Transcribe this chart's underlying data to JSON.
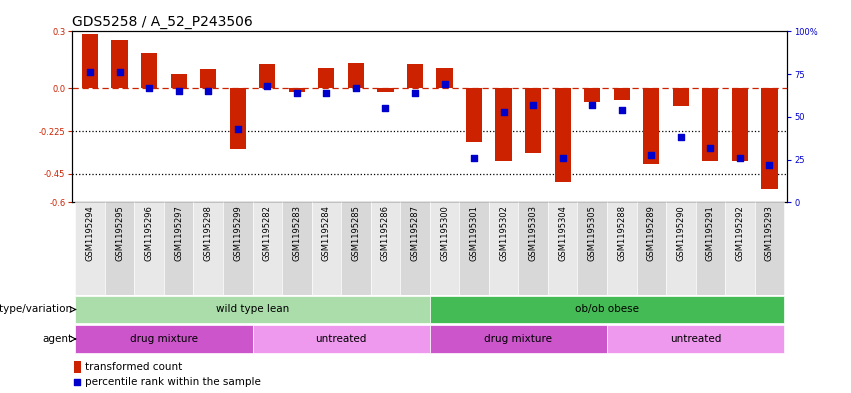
{
  "title": "GDS5258 / A_52_P243506",
  "samples": [
    "GSM1195294",
    "GSM1195295",
    "GSM1195296",
    "GSM1195297",
    "GSM1195298",
    "GSM1195299",
    "GSM1195282",
    "GSM1195283",
    "GSM1195284",
    "GSM1195285",
    "GSM1195286",
    "GSM1195287",
    "GSM1195300",
    "GSM1195301",
    "GSM1195302",
    "GSM1195303",
    "GSM1195304",
    "GSM1195305",
    "GSM1195288",
    "GSM1195289",
    "GSM1195290",
    "GSM1195291",
    "GSM1195292",
    "GSM1195293"
  ],
  "red_bars": [
    0.285,
    0.255,
    0.185,
    0.075,
    0.1,
    -0.32,
    0.13,
    -0.02,
    0.11,
    0.135,
    -0.02,
    0.13,
    0.11,
    -0.28,
    -0.38,
    -0.34,
    -0.49,
    -0.07,
    -0.06,
    -0.4,
    -0.09,
    -0.38,
    -0.38,
    -0.53
  ],
  "blue_squares_pct": [
    76,
    76,
    67,
    65,
    65,
    43,
    68,
    64,
    64,
    67,
    55,
    64,
    69,
    26,
    53,
    57,
    26,
    57,
    54,
    28,
    38,
    32,
    26,
    22
  ],
  "ylim_left": [
    -0.6,
    0.3
  ],
  "ylim_right": [
    0,
    100
  ],
  "yticks_left": [
    0.3,
    0.0,
    -0.225,
    -0.45,
    -0.6
  ],
  "yticks_right": [
    100,
    75,
    50,
    25,
    0
  ],
  "bar_color": "#CC2200",
  "square_color": "#0000CC",
  "genotype_groups": [
    {
      "label": "wild type lean",
      "start": 0,
      "end": 11,
      "color": "#AADDAA"
    },
    {
      "label": "ob/ob obese",
      "start": 12,
      "end": 23,
      "color": "#44BB55"
    }
  ],
  "agent_groups": [
    {
      "label": "drug mixture",
      "start": 0,
      "end": 5,
      "color": "#CC55CC"
    },
    {
      "label": "untreated",
      "start": 6,
      "end": 11,
      "color": "#EE99EE"
    },
    {
      "label": "drug mixture",
      "start": 12,
      "end": 17,
      "color": "#CC55CC"
    },
    {
      "label": "untreated",
      "start": 18,
      "end": 23,
      "color": "#EE99EE"
    }
  ],
  "legend_bar_label": "transformed count",
  "legend_sq_label": "percentile rank within the sample",
  "bar_width": 0.55,
  "title_fontsize": 10,
  "tick_fontsize": 6,
  "label_fontsize": 7.5,
  "row_label_fontsize": 7.5
}
